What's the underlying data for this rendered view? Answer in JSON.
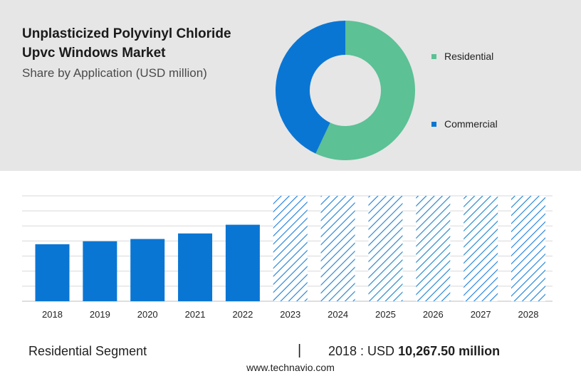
{
  "header": {
    "title_line1": "Unplasticized Polyvinyl Chloride",
    "title_line2": "Upvc Windows Market",
    "subtitle": "Share by Application (USD million)"
  },
  "colors": {
    "residential": "#5cc195",
    "commercial": "#0a76d4",
    "bar": "#0a76d4",
    "forecast_hatch": "#1a7fd6",
    "top_panel": "#e6e6e6"
  },
  "chart_data": [
    {
      "type": "pie",
      "variant": "donut",
      "title": "Share by Application (USD million)",
      "categories": [
        "Residential",
        "Commercial"
      ],
      "values": [
        57,
        43
      ],
      "legend_position": "right"
    },
    {
      "type": "bar",
      "categories": [
        "2018",
        "2019",
        "2020",
        "2021",
        "2022",
        "2023",
        "2024",
        "2025",
        "2026",
        "2027",
        "2028"
      ],
      "values": [
        10267.5,
        10810,
        11220,
        12220,
        13790,
        null,
        null,
        null,
        null,
        null,
        null
      ],
      "forecast_categories": [
        "2023",
        "2024",
        "2025",
        "2026",
        "2027",
        "2028"
      ],
      "forecast_style": "hatched",
      "ylim": [
        0,
        19000
      ],
      "y_axis_labels": false,
      "grid": true
    }
  ],
  "footer": {
    "segment_label": "Residential Segment",
    "separator": "|",
    "value_prefix": "2018 : USD ",
    "value_bold": "10,267.50 million",
    "url": "www.technavio.com"
  }
}
